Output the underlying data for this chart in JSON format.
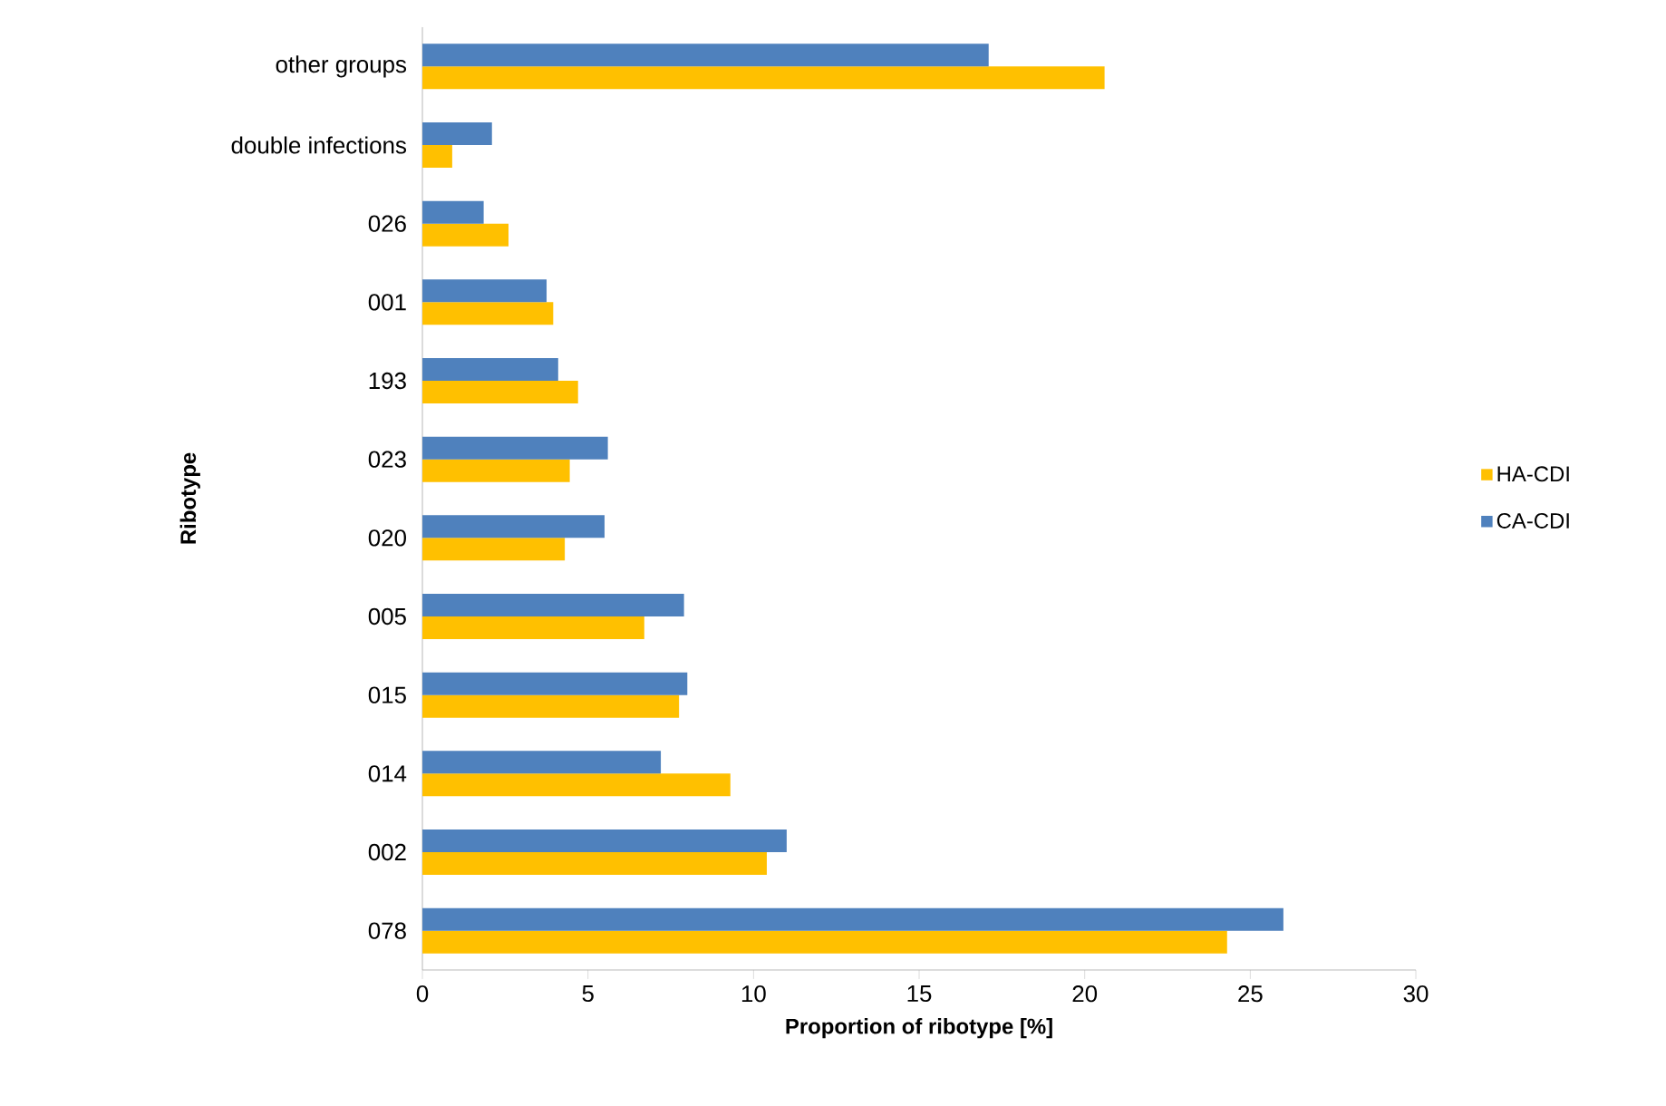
{
  "chart_data": {
    "type": "bar",
    "orientation": "horizontal",
    "xlabel": "Proportion of ribotype [%]",
    "ylabel": "Ribotype",
    "categories": [
      "other groups",
      "double infections",
      "026",
      "001",
      "193",
      "023",
      "020",
      "005",
      "015",
      "014",
      "002",
      "078"
    ],
    "series": [
      {
        "name": "HA-CDI",
        "color": "#ffc000",
        "values": [
          20.6,
          0.9,
          2.6,
          3.95,
          4.7,
          4.45,
          4.3,
          6.7,
          7.75,
          9.3,
          10.4,
          24.3
        ]
      },
      {
        "name": "CA-CDI",
        "color": "#4f81bd",
        "values": [
          17.1,
          2.1,
          1.85,
          3.75,
          4.1,
          5.6,
          5.5,
          7.9,
          8.0,
          7.2,
          11.0,
          26.0
        ]
      }
    ],
    "xlim": [
      0,
      30
    ],
    "xticks": [
      0,
      5,
      10,
      15,
      20,
      25,
      30
    ],
    "legend": "right"
  }
}
